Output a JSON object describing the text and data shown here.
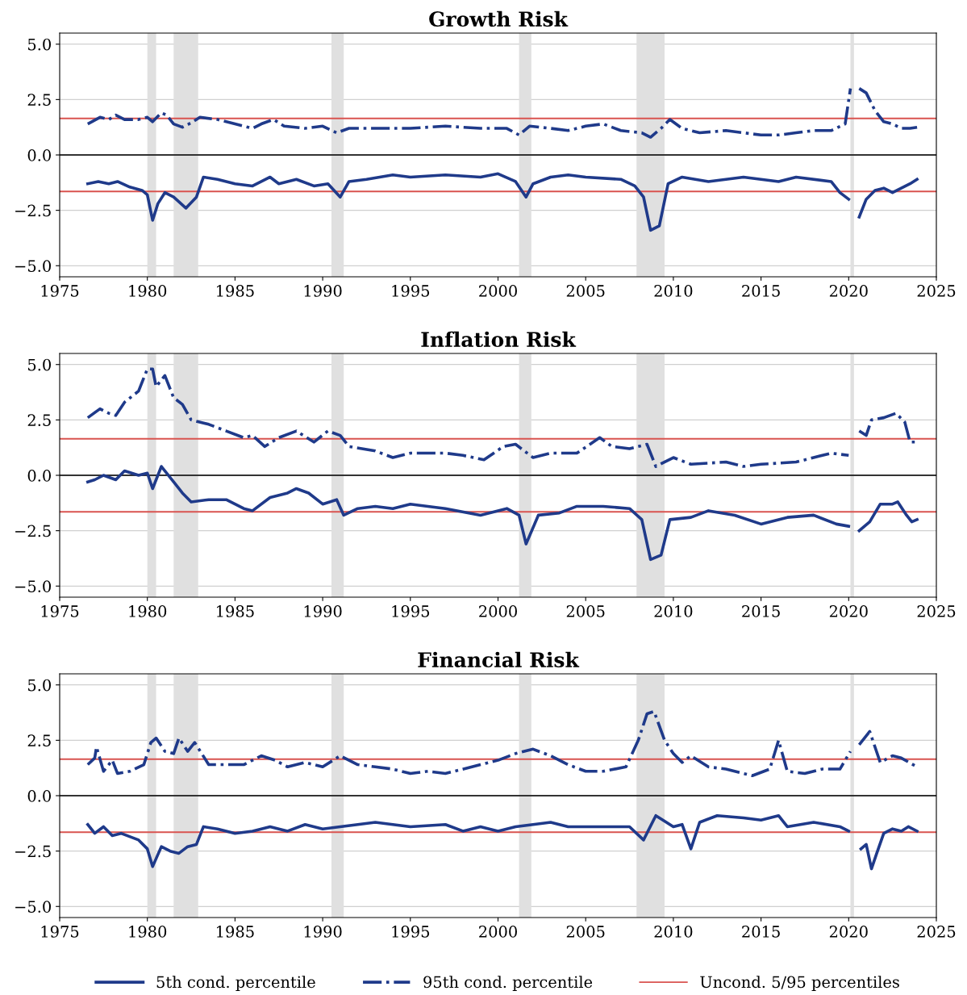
{
  "chart_data": [
    {
      "type": "line",
      "title": "Growth Risk",
      "xlim": [
        1975,
        2025
      ],
      "xticks": [
        1975,
        1980,
        1985,
        1990,
        1995,
        2000,
        2005,
        2010,
        2015,
        2020,
        2025
      ],
      "ylim": [
        -5.5,
        5.5
      ],
      "yticks": [
        {
          "value": -5,
          "label": "−5.0"
        },
        {
          "value": -2.5,
          "label": "−2.5"
        },
        {
          "value": 0,
          "label": "0.0"
        },
        {
          "value": 2.5,
          "label": "2.5"
        },
        {
          "value": 5,
          "label": "5.0"
        }
      ],
      "grid": "y",
      "legend": false,
      "bands": [
        {
          "axis": "x",
          "from": 1980.0,
          "to": 1980.5,
          "color": "#e0e0e0"
        },
        {
          "axis": "x",
          "from": 1981.5,
          "to": 1982.9,
          "color": "#e0e0e0"
        },
        {
          "axis": "x",
          "from": 1990.5,
          "to": 1991.2,
          "color": "#e0e0e0"
        },
        {
          "axis": "x",
          "from": 2001.2,
          "to": 2001.9,
          "color": "#e0e0e0"
        },
        {
          "axis": "x",
          "from": 2007.9,
          "to": 2009.5,
          "color": "#e0e0e0"
        },
        {
          "axis": "x",
          "from": 2020.1,
          "to": 2020.3,
          "color": "#e0e0e0"
        }
      ],
      "ref_lines": [
        {
          "axis": "y",
          "value": 0,
          "color": "#333333"
        },
        {
          "axis": "y",
          "value": 1.65,
          "color": "#d9534f"
        },
        {
          "axis": "y",
          "value": -1.65,
          "color": "#d9534f"
        }
      ],
      "series": [
        {
          "color": "#1f3a8a",
          "line_style": "solid",
          "x": [
            1976.6,
            1977.2,
            1977.8,
            1978.3,
            1979,
            1979.7,
            1980.0,
            1980.3,
            1980.6,
            1981.0,
            1981.5,
            1982.2,
            1982.8,
            1983.2,
            1984,
            1985,
            1986,
            1987.0,
            1987.5,
            1988.5,
            1989.5,
            1990.3,
            1991.0,
            1991.5,
            1992.5,
            1994,
            1995,
            1997,
            1999,
            2000,
            2001,
            2001.6,
            2002,
            2003,
            2004,
            2005,
            2007,
            2007.8,
            2008.3,
            2008.7,
            2009.2,
            2009.7,
            2010.5,
            2012,
            2014,
            2016,
            2017,
            2019,
            2019.5,
            2020.0,
            2020.25,
            2020.4,
            2020.6,
            2021,
            2021.5,
            2022,
            2022.5,
            2023,
            2023.5,
            2023.9
          ],
          "values": [
            -1.3,
            -1.2,
            -1.3,
            -1.2,
            -1.45,
            -1.6,
            -1.8,
            -2.95,
            -2.2,
            -1.7,
            -1.9,
            -2.4,
            -1.9,
            -1.0,
            -1.1,
            -1.3,
            -1.4,
            -1.0,
            -1.3,
            -1.1,
            -1.4,
            -1.3,
            -1.9,
            -1.2,
            -1.1,
            -0.9,
            -1.0,
            -0.9,
            -1.0,
            -0.85,
            -1.2,
            -1.9,
            -1.3,
            -1.0,
            -0.9,
            -1.0,
            -1.1,
            -1.4,
            -1.9,
            -3.4,
            -3.2,
            -1.3,
            -1.0,
            -1.2,
            -1.0,
            -1.2,
            -1.0,
            -1.2,
            -1.7,
            -2.0,
            null,
            null,
            -2.8,
            -2.0,
            -1.6,
            -1.5,
            -1.7,
            -1.5,
            -1.3,
            -1.1
          ]
        },
        {
          "color": "#1f3a8a",
          "line_style": "dashdot",
          "x": [
            1976.6,
            1977.3,
            1977.8,
            1978.2,
            1978.7,
            1979.5,
            1980.0,
            1980.3,
            1980.8,
            1981.1,
            1981.5,
            1982.0,
            1982.5,
            1983.0,
            1984.0,
            1985.0,
            1986.0,
            1986.5,
            1987.2,
            1987.8,
            1989.0,
            1990.0,
            1990.8,
            1991.5,
            1993,
            1995,
            1997,
            1999,
            2000.5,
            2001.2,
            2001.8,
            2003,
            2004,
            2005,
            2006,
            2007,
            2008.2,
            2008.7,
            2009.3,
            2009.8,
            2010.5,
            2011.5,
            2013,
            2014,
            2015,
            2016,
            2017,
            2018,
            2019,
            2019.8,
            2020.1,
            2020.25,
            2020.4,
            2020.6,
            2021.0,
            2021.5,
            2022.0,
            2022.5,
            2023,
            2023.5,
            2023.9
          ],
          "values": [
            1.4,
            1.7,
            1.6,
            1.8,
            1.6,
            1.6,
            1.7,
            1.5,
            1.9,
            1.8,
            1.4,
            1.25,
            1.45,
            1.7,
            1.6,
            1.4,
            1.2,
            1.4,
            1.6,
            1.3,
            1.2,
            1.3,
            1.0,
            1.2,
            1.2,
            1.2,
            1.3,
            1.2,
            1.2,
            0.9,
            1.3,
            1.2,
            1.1,
            1.3,
            1.4,
            1.1,
            1.0,
            0.8,
            1.2,
            1.6,
            1.2,
            1.0,
            1.1,
            1.0,
            0.9,
            0.9,
            1.0,
            1.1,
            1.1,
            1.4,
            3.0,
            null,
            null,
            3.0,
            2.8,
            2.0,
            1.5,
            1.4,
            1.2,
            1.2,
            1.25
          ]
        }
      ]
    },
    {
      "type": "line",
      "title": "Inflation Risk",
      "xlim": [
        1975,
        2025
      ],
      "xticks": [
        1975,
        1980,
        1985,
        1990,
        1995,
        2000,
        2005,
        2010,
        2015,
        2020,
        2025
      ],
      "ylim": [
        -5.5,
        5.5
      ],
      "yticks": [
        {
          "value": -5,
          "label": "−5.0"
        },
        {
          "value": -2.5,
          "label": "−2.5"
        },
        {
          "value": 0,
          "label": "0.0"
        },
        {
          "value": 2.5,
          "label": "2.5"
        },
        {
          "value": 5,
          "label": "5.0"
        }
      ],
      "grid": "y",
      "legend": false,
      "bands": [
        {
          "axis": "x",
          "from": 1980.0,
          "to": 1980.5,
          "color": "#e0e0e0"
        },
        {
          "axis": "x",
          "from": 1981.5,
          "to": 1982.9,
          "color": "#e0e0e0"
        },
        {
          "axis": "x",
          "from": 1990.5,
          "to": 1991.2,
          "color": "#e0e0e0"
        },
        {
          "axis": "x",
          "from": 2001.2,
          "to": 2001.9,
          "color": "#e0e0e0"
        },
        {
          "axis": "x",
          "from": 2007.9,
          "to": 2009.5,
          "color": "#e0e0e0"
        },
        {
          "axis": "x",
          "from": 2020.1,
          "to": 2020.3,
          "color": "#e0e0e0"
        }
      ],
      "ref_lines": [
        {
          "axis": "y",
          "value": 0,
          "color": "#333333"
        },
        {
          "axis": "y",
          "value": 1.65,
          "color": "#d9534f"
        },
        {
          "axis": "y",
          "value": -1.65,
          "color": "#d9534f"
        }
      ],
      "series": [
        {
          "color": "#1f3a8a",
          "line_style": "solid",
          "x": [
            1976.6,
            1977.0,
            1977.5,
            1978.2,
            1978.7,
            1979.5,
            1980.0,
            1980.3,
            1980.8,
            1981.5,
            1982.0,
            1982.5,
            1983.5,
            1984.5,
            1985.5,
            1986.0,
            1987.0,
            1988.0,
            1988.5,
            1989.2,
            1990.0,
            1990.8,
            1991.2,
            1992,
            1993,
            1994,
            1995,
            1997,
            1999,
            2000.5,
            2001.2,
            2001.6,
            2002.3,
            2003.5,
            2004.5,
            2006,
            2007.5,
            2008.2,
            2008.7,
            2009.3,
            2009.8,
            2011,
            2012,
            2013.5,
            2015,
            2016.5,
            2018,
            2019.3,
            2020.0,
            2020.2,
            2020.45,
            2020.6,
            2021.2,
            2021.8,
            2022.5,
            2022.8,
            2023.3,
            2023.6,
            2023.9
          ],
          "values": [
            -0.3,
            -0.2,
            0.0,
            -0.2,
            0.2,
            0.0,
            0.1,
            -0.6,
            0.4,
            -0.3,
            -0.8,
            -1.2,
            -1.1,
            -1.1,
            -1.5,
            -1.6,
            -1.0,
            -0.8,
            -0.6,
            -0.8,
            -1.3,
            -1.1,
            -1.8,
            -1.5,
            -1.4,
            -1.5,
            -1.3,
            -1.5,
            -1.8,
            -1.5,
            -1.8,
            -3.1,
            -1.8,
            -1.7,
            -1.4,
            -1.4,
            -1.5,
            -2.0,
            -3.8,
            -3.6,
            -2.0,
            -1.9,
            -1.6,
            -1.8,
            -2.2,
            -1.9,
            -1.8,
            -2.2,
            -2.3,
            null,
            null,
            -2.5,
            -2.1,
            -1.3,
            -1.3,
            -1.2,
            -1.8,
            -2.1,
            -2.0
          ]
        },
        {
          "color": "#1f3a8a",
          "line_style": "dashdot",
          "x": [
            1976.6,
            1977.3,
            1977.8,
            1978.2,
            1978.7,
            1979.5,
            1980.0,
            1980.3,
            1980.5,
            1981.0,
            1981.5,
            1982.0,
            1982.5,
            1983.5,
            1984.5,
            1985.5,
            1986.0,
            1986.7,
            1987.5,
            1988.5,
            1989.5,
            1990.3,
            1991.0,
            1991.5,
            1993,
            1994,
            1995,
            1997,
            1998,
            1999.2,
            2000.3,
            2001,
            2002,
            2003,
            2004.5,
            2005.8,
            2006.5,
            2007.5,
            2008.5,
            2009,
            2010,
            2011,
            2013,
            2014,
            2015,
            2017,
            2018,
            2019,
            2020.0,
            2020.2,
            2020.45,
            2020.6,
            2021.0,
            2021.3,
            2022,
            2022.7,
            2023.2,
            2023.5,
            2023.9
          ],
          "values": [
            2.6,
            3.0,
            2.8,
            2.7,
            3.3,
            3.8,
            4.8,
            4.8,
            4.0,
            4.5,
            3.5,
            3.2,
            2.5,
            2.3,
            2.0,
            1.7,
            1.8,
            1.3,
            1.7,
            2.0,
            1.5,
            2.0,
            1.8,
            1.3,
            1.1,
            0.8,
            1.0,
            1.0,
            0.9,
            0.7,
            1.3,
            1.4,
            0.8,
            1.0,
            1.0,
            1.7,
            1.3,
            1.2,
            1.4,
            0.4,
            0.8,
            0.5,
            0.6,
            0.4,
            0.5,
            0.6,
            0.8,
            1.0,
            0.9,
            null,
            null,
            2.0,
            1.8,
            2.5,
            2.6,
            2.8,
            2.4,
            1.5,
            1.5
          ]
        }
      ]
    },
    {
      "type": "line",
      "title": "Financial Risk",
      "xlim": [
        1975,
        2025
      ],
      "xticks": [
        1975,
        1980,
        1985,
        1990,
        1995,
        2000,
        2005,
        2010,
        2015,
        2020,
        2025
      ],
      "ylim": [
        -5.5,
        5.5
      ],
      "yticks": [
        {
          "value": -5,
          "label": "−5.0"
        },
        {
          "value": -2.5,
          "label": "−2.5"
        },
        {
          "value": 0,
          "label": "0.0"
        },
        {
          "value": 2.5,
          "label": "2.5"
        },
        {
          "value": 5,
          "label": "5.0"
        }
      ],
      "grid": "y",
      "legend": "bottom",
      "bands": [
        {
          "axis": "x",
          "from": 1980.0,
          "to": 1980.5,
          "color": "#e0e0e0"
        },
        {
          "axis": "x",
          "from": 1981.5,
          "to": 1982.9,
          "color": "#e0e0e0"
        },
        {
          "axis": "x",
          "from": 1990.5,
          "to": 1991.2,
          "color": "#e0e0e0"
        },
        {
          "axis": "x",
          "from": 2001.2,
          "to": 2001.9,
          "color": "#e0e0e0"
        },
        {
          "axis": "x",
          "from": 2007.9,
          "to": 2009.5,
          "color": "#e0e0e0"
        },
        {
          "axis": "x",
          "from": 2020.1,
          "to": 2020.3,
          "color": "#e0e0e0"
        }
      ],
      "ref_lines": [
        {
          "axis": "y",
          "value": 0,
          "color": "#333333"
        },
        {
          "axis": "y",
          "value": 1.65,
          "color": "#d9534f",
          "label": "Uncond. 5/95 percentiles"
        },
        {
          "axis": "y",
          "value": -1.65,
          "color": "#d9534f"
        }
      ],
      "series": [
        {
          "name": "5th cond. percentile",
          "color": "#1f3a8a",
          "line_style": "solid",
          "x": [
            1976.6,
            1977.0,
            1977.5,
            1978.0,
            1978.5,
            1979.5,
            1980.0,
            1980.3,
            1980.8,
            1981.3,
            1981.8,
            1982.3,
            1982.8,
            1983.2,
            1984,
            1985,
            1986,
            1987,
            1988,
            1989,
            1990,
            1991,
            1993,
            1995,
            1997,
            1998,
            1999,
            2000,
            2001,
            2002,
            2003,
            2004,
            2006,
            2007.5,
            2008.3,
            2009.0,
            2010,
            2010.5,
            2011.0,
            2011.5,
            2012.5,
            2014,
            2015,
            2016,
            2016.5,
            2018,
            2019.5,
            2020.0,
            2020.25,
            2020.4,
            2020.7,
            2021.0,
            2021.3,
            2021.6,
            2022,
            2022.5,
            2023,
            2023.4,
            2023.9
          ],
          "values": [
            -1.3,
            -1.7,
            -1.4,
            -1.8,
            -1.7,
            -2.0,
            -2.4,
            -3.2,
            -2.3,
            -2.5,
            -2.6,
            -2.3,
            -2.2,
            -1.4,
            -1.5,
            -1.7,
            -1.6,
            -1.4,
            -1.6,
            -1.3,
            -1.5,
            -1.4,
            -1.2,
            -1.4,
            -1.3,
            -1.6,
            -1.4,
            -1.6,
            -1.4,
            -1.3,
            -1.2,
            -1.4,
            -1.4,
            -1.4,
            -2.0,
            -0.9,
            -1.4,
            -1.3,
            -2.4,
            -1.2,
            -0.9,
            -1.0,
            -1.1,
            -0.9,
            -1.4,
            -1.2,
            -1.4,
            -1.6,
            null,
            null,
            -2.4,
            -2.2,
            -3.3,
            -2.6,
            -1.7,
            -1.5,
            -1.6,
            -1.4,
            -1.6
          ]
        },
        {
          "name": "95th cond. percentile",
          "color": "#1f3a8a",
          "line_style": "dashdot",
          "x": [
            1976.6,
            1977.0,
            1977.1,
            1977.5,
            1978.0,
            1978.3,
            1979.0,
            1979.8,
            1980.2,
            1980.5,
            1981.0,
            1981.5,
            1981.8,
            1982.3,
            1982.7,
            1983.5,
            1984.5,
            1985.5,
            1986.5,
            1987.3,
            1988.0,
            1989.0,
            1990.0,
            1991.0,
            1992,
            1993,
            1994,
            1995,
            1996,
            1997,
            1999,
            2000,
            2001,
            2002,
            2003,
            2004,
            2005,
            2006,
            2007.3,
            2008.0,
            2008.5,
            2008.9,
            2009.5,
            2010.0,
            2010.5,
            2011,
            2012,
            2013,
            2014.5,
            2015.5,
            2016.0,
            2016.5,
            2017.5,
            2018.5,
            2019.5,
            2020.1,
            2020.25,
            2020.45,
            2020.6,
            2021.2,
            2021.8,
            2022.5,
            2023,
            2023.9
          ],
          "values": [
            1.4,
            1.7,
            2.2,
            1.1,
            1.6,
            1.0,
            1.1,
            1.4,
            2.4,
            2.6,
            2.0,
            1.9,
            2.6,
            2.0,
            2.4,
            1.4,
            1.4,
            1.4,
            1.8,
            1.6,
            1.3,
            1.5,
            1.3,
            1.8,
            1.4,
            1.3,
            1.2,
            1.0,
            1.1,
            1.0,
            1.4,
            1.6,
            1.9,
            2.1,
            1.8,
            1.4,
            1.1,
            1.1,
            1.3,
            2.5,
            3.7,
            3.8,
            2.5,
            1.9,
            1.5,
            1.8,
            1.3,
            1.2,
            0.9,
            1.2,
            2.5,
            1.1,
            1.0,
            1.2,
            1.2,
            2.0,
            null,
            null,
            2.3,
            2.9,
            1.5,
            1.8,
            1.7,
            1.3
          ]
        }
      ]
    }
  ]
}
